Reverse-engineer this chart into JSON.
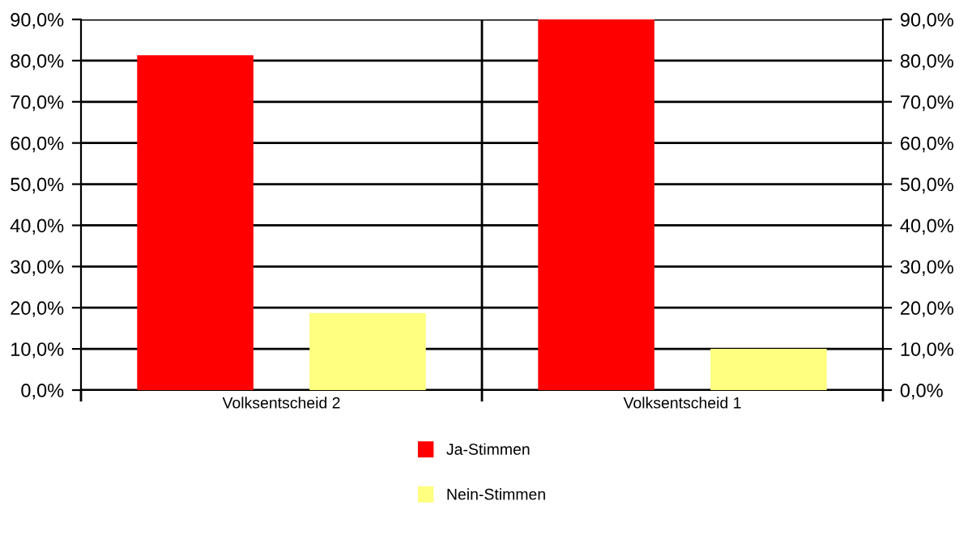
{
  "chart_data": {
    "type": "bar",
    "categories": [
      "Volksentscheid 2",
      "Volksentscheid 1"
    ],
    "series": [
      {
        "name": "Ja-Stimmen",
        "color": "#ff0000",
        "values": [
          81.3,
          90.0
        ]
      },
      {
        "name": "Nein-Stimmen",
        "color": "#ffff80",
        "values": [
          18.7,
          10.0
        ]
      }
    ],
    "ylim": [
      0,
      90
    ],
    "yticks": [
      {
        "value": 0,
        "label": "0,0%"
      },
      {
        "value": 10,
        "label": "10,0%"
      },
      {
        "value": 20,
        "label": "20,0%"
      },
      {
        "value": 30,
        "label": "30,0%"
      },
      {
        "value": 40,
        "label": "40,0%"
      },
      {
        "value": 50,
        "label": "50,0%"
      },
      {
        "value": 60,
        "label": "60,0%"
      },
      {
        "value": 70,
        "label": "70,0%"
      },
      {
        "value": 80,
        "label": "80,0%"
      },
      {
        "value": 90,
        "label": "90,0%"
      }
    ],
    "y2lim": [
      0,
      90
    ],
    "y2ticks": [
      {
        "value": 0,
        "label": "0,0%"
      },
      {
        "value": 10,
        "label": "10,0%"
      },
      {
        "value": 20,
        "label": "20,0%"
      },
      {
        "value": 30,
        "label": "30,0%"
      },
      {
        "value": 40,
        "label": "40,0%"
      },
      {
        "value": 50,
        "label": "50,0%"
      },
      {
        "value": 60,
        "label": "60,0%"
      },
      {
        "value": 70,
        "label": "70,0%"
      },
      {
        "value": 80,
        "label": "80,0%"
      },
      {
        "value": 90,
        "label": "90,0%"
      }
    ],
    "grid": true,
    "legend": "bottom"
  }
}
